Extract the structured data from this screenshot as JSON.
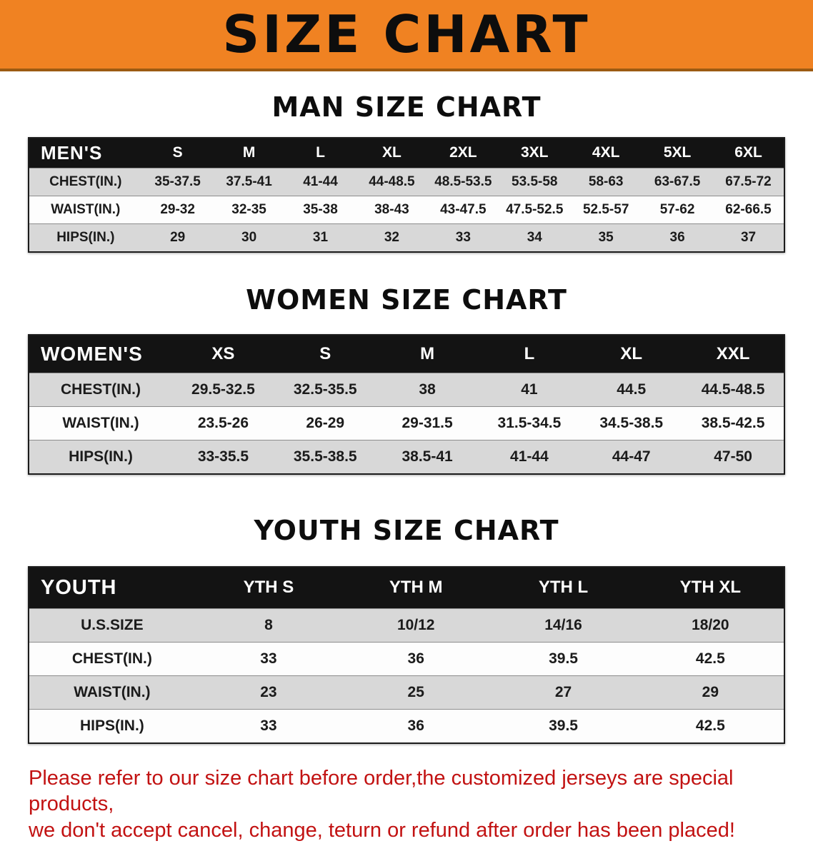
{
  "banner": {
    "title": "SIZE CHART",
    "background_color": "#f08222"
  },
  "sections": [
    {
      "id": "men",
      "heading": "MAN SIZE CHART",
      "header": [
        "MEN'S",
        "S",
        "M",
        "L",
        "XL",
        "2XL",
        "3XL",
        "4XL",
        "5XL",
        "6XL"
      ],
      "rows": [
        [
          "CHEST(IN.)",
          "35-37.5",
          "37.5-41",
          "41-44",
          "44-48.5",
          "48.5-53.5",
          "53.5-58",
          "58-63",
          "63-67.5",
          "67.5-72"
        ],
        [
          "WAIST(IN.)",
          "29-32",
          "32-35",
          "35-38",
          "38-43",
          "43-47.5",
          "47.5-52.5",
          "52.5-57",
          "57-62",
          "62-66.5"
        ],
        [
          "HIPS(IN.)",
          "29",
          "30",
          "31",
          "32",
          "33",
          "34",
          "35",
          "36",
          "37"
        ]
      ]
    },
    {
      "id": "women",
      "heading": "WOMEN SIZE CHART",
      "header": [
        "WOMEN'S",
        "XS",
        "S",
        "M",
        "L",
        "XL",
        "XXL"
      ],
      "rows": [
        [
          "CHEST(IN.)",
          "29.5-32.5",
          "32.5-35.5",
          "38",
          "41",
          "44.5",
          "44.5-48.5"
        ],
        [
          "WAIST(IN.)",
          "23.5-26",
          "26-29",
          "29-31.5",
          "31.5-34.5",
          "34.5-38.5",
          "38.5-42.5"
        ],
        [
          "HIPS(IN.)",
          "33-35.5",
          "35.5-38.5",
          "38.5-41",
          "41-44",
          "44-47",
          "47-50"
        ]
      ]
    },
    {
      "id": "youth",
      "heading": "YOUTH SIZE CHART",
      "header": [
        "YOUTH",
        "YTH S",
        "YTH M",
        "YTH L",
        "YTH XL"
      ],
      "rows": [
        [
          "U.S.SIZE",
          "8",
          "10/12",
          "14/16",
          "18/20"
        ],
        [
          "CHEST(IN.)",
          "33",
          "36",
          "39.5",
          "42.5"
        ],
        [
          "WAIST(IN.)",
          "23",
          "25",
          "27",
          "29"
        ],
        [
          "HIPS(IN.)",
          "33",
          "36",
          "39.5",
          "42.5"
        ]
      ]
    }
  ],
  "note": {
    "line1": "Please refer to our size chart before order,the customized jerseys are special products,",
    "line2": "we don't accept cancel, change, teturn or refund after order has been placed!",
    "color": "#c21212"
  }
}
